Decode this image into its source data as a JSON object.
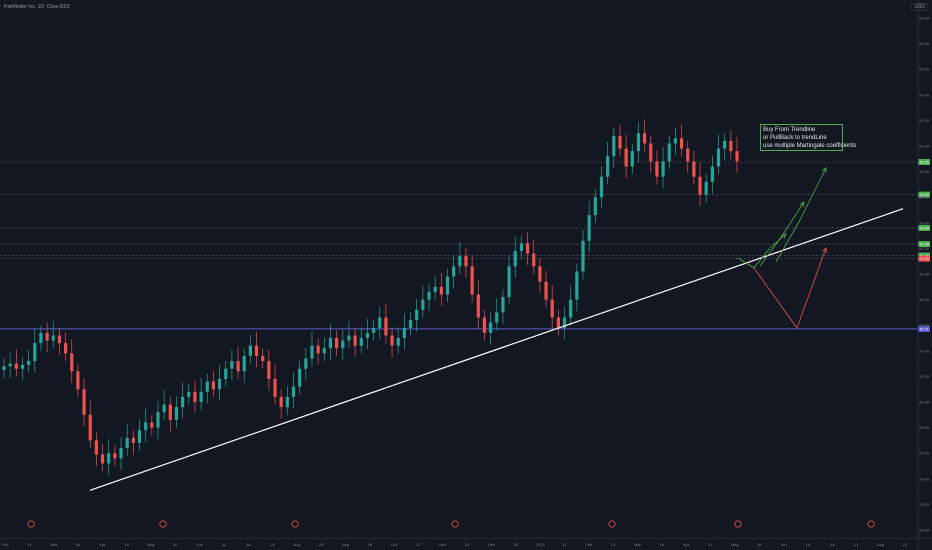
{
  "header": {
    "title": "Pathfinder Inc, 1D, Cboe BZX",
    "currency": "USD"
  },
  "annotation": {
    "lines": [
      "Buy From Trendline",
      "or PullBack to trendLine",
      "use multiple Martingale coefficients"
    ]
  },
  "colors": {
    "background": "#131722",
    "up": "#26a69a",
    "down": "#ef5350",
    "trendline": "#ffffff",
    "support": "#5b5bd6",
    "grid_level": "#5d606b",
    "green_arrow": "#4caf50",
    "red_arrow": "#ef5350"
  },
  "chart_data": {
    "type": "candlestick",
    "y_axis": {
      "min": 20,
      "max": 60,
      "ticks": [
        "60.00",
        "58.00",
        "56.00",
        "54.00",
        "52.00",
        "50.00",
        "48.00",
        "46.00",
        "44.00",
        "42.00",
        "40.00",
        "38.00",
        "36.00",
        "34.00",
        "32.00",
        "30.00",
        "28.00",
        "26.00",
        "24.00",
        "22.00",
        "20.00"
      ]
    },
    "x_axis": {
      "labels": [
        "Feb",
        "14",
        "Mar",
        "16",
        "Apr",
        "18",
        "May",
        "20",
        "Jun",
        "22",
        "Jul",
        "24",
        "Aug",
        "25",
        "Sep",
        "26",
        "Oct",
        "27",
        "Nov",
        "29",
        "Dec",
        "30",
        "2023",
        "31",
        "Feb",
        "13",
        "Mar",
        "14",
        "Apr",
        "17",
        "May",
        "18",
        "Jun",
        "19",
        "Jul",
        "21",
        "Aug",
        "22"
      ]
    },
    "price_levels": [
      {
        "value": 48.75,
        "label": "48.75",
        "color": "#4caf50"
      },
      {
        "value": 46.2,
        "label": "46.20",
        "color": "#4caf50"
      },
      {
        "value": 43.6,
        "label": "43.60",
        "color": "#4caf50"
      },
      {
        "value": 42.34,
        "label": "42.34",
        "color": "#4caf50"
      },
      {
        "value": 41.44,
        "label": "41.44",
        "color": "#4caf50"
      },
      {
        "value": 41.2,
        "label": "41.20",
        "color": "#ef5350"
      },
      {
        "value": 35.71,
        "label": "35.71",
        "color": "#5b5bd6"
      }
    ],
    "support_level": 35.71,
    "trendline": {
      "from_value": 23.1,
      "to_value": 45.1
    },
    "close_series": [
      32.8,
      33.0,
      32.6,
      32.9,
      33.2,
      34.6,
      35.4,
      34.8,
      35.2,
      34.6,
      33.8,
      32.4,
      31.0,
      29.0,
      27.0,
      25.9,
      25.2,
      26.0,
      25.6,
      26.4,
      27.2,
      26.8,
      27.8,
      28.4,
      28.0,
      29.2,
      29.8,
      28.6,
      29.6,
      30.4,
      30.8,
      30.0,
      30.8,
      31.6,
      31.0,
      31.8,
      32.6,
      33.2,
      32.4,
      33.6,
      34.4,
      33.6,
      33.2,
      31.8,
      30.4,
      29.6,
      30.4,
      31.2,
      32.6,
      33.4,
      34.4,
      33.8,
      34.2,
      35.0,
      34.2,
      34.8,
      35.2,
      34.4,
      35.0,
      35.4,
      35.8,
      36.6,
      35.2,
      34.4,
      35.0,
      35.8,
      36.4,
      37.2,
      38.0,
      38.6,
      39.0,
      38.4,
      39.8,
      40.6,
      41.4,
      40.6,
      38.4,
      36.6,
      35.4,
      36.2,
      37.0,
      38.2,
      40.6,
      41.8,
      42.4,
      41.6,
      40.6,
      39.4,
      38.0,
      36.6,
      35.8,
      36.6,
      38.0,
      40.2,
      42.6,
      44.6,
      46.0,
      47.6,
      49.2,
      50.8,
      49.8,
      48.4,
      49.6,
      51.0,
      50.2,
      48.8,
      47.6,
      48.8,
      50.2,
      50.6,
      49.8,
      48.8,
      47.6,
      46.2,
      47.2,
      48.4,
      49.8,
      50.4,
      49.6,
      48.8
    ]
  }
}
